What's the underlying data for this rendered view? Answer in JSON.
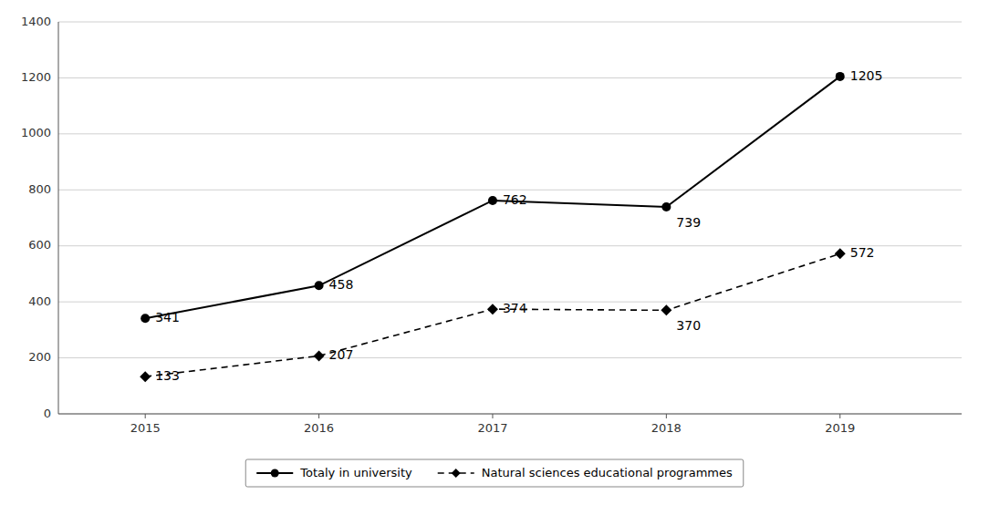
{
  "chart_data": {
    "type": "line",
    "x": [
      2015,
      2016,
      2017,
      2018,
      2019
    ],
    "xlim": [
      2014.5,
      2019.7
    ],
    "xticks": [
      2015,
      2016,
      2017,
      2018,
      2019
    ],
    "ylim": [
      0,
      1400
    ],
    "yticks": [
      0,
      200,
      400,
      600,
      800,
      1000,
      1200,
      1400
    ],
    "grid": true,
    "legend": "bottom",
    "data_labels": true,
    "series": [
      {
        "name": "Totaly in university",
        "color": "#000000",
        "marker": "circle",
        "line_style": "solid",
        "values": [
          341,
          458,
          762,
          739,
          1205
        ]
      },
      {
        "name": "Natural sciences educational programmes",
        "color": "#000000",
        "marker": "diamond",
        "line_style": "dashed",
        "values": [
          133,
          207,
          374,
          370,
          572
        ]
      }
    ]
  }
}
